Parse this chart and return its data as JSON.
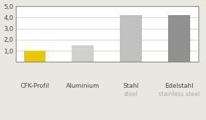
{
  "categories_line1": [
    "CFK-Profil",
    "Aluminium",
    "Stahl",
    "Edelstahl"
  ],
  "categories_line2": [
    "",
    "",
    "steel",
    "stainless steel"
  ],
  "values": [
    1.0,
    1.5,
    4.2,
    4.2
  ],
  "bar_colors": [
    "#e8c800",
    "#d0d0d0",
    "#c0c0c0",
    "#909090"
  ],
  "ylim": [
    0,
    5.0
  ],
  "yticks": [
    1.0,
    2.0,
    3.0,
    4.0,
    5.0
  ],
  "ytick_labels": [
    "1,0",
    "2,0",
    "3,0",
    "4,0",
    "5,0"
  ],
  "outer_bg": "#e8e8e0",
  "plot_bg": "#ffffff",
  "grid_color": "#d8d8d8",
  "border_color": "#888888",
  "label_color1": "#444444",
  "label_color2": "#aaaaaa",
  "bar_width": 0.45,
  "figsize": [
    2.99,
    1.75
  ],
  "dpi": 100
}
